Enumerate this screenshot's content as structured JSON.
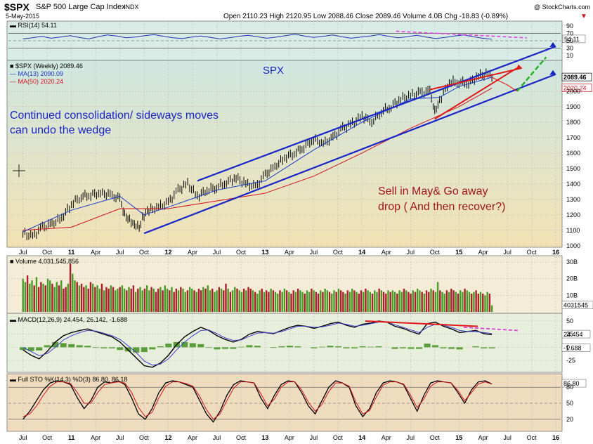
{
  "header": {
    "symbol": "$SPX",
    "name": "S&P 500 Large Cap Index",
    "exchange": "INDX",
    "date": "5-May-2015",
    "copyright": "@ StockCharts.com",
    "quote": "Open 2110.23  High 2120.95  Low 2088.46  Close 2089.46  Volume 4.0B  Chg -18.83 (-0.89%)",
    "quote_arrow": "▼"
  },
  "annotations": {
    "spx": "SPX",
    "consolidation": "Continued consolidation/ sideways moves\ncan undo the wedge",
    "sell_in_may": "Sell in May& Go away\ndrop ( And then recover?)"
  },
  "colors": {
    "price": "#000000",
    "ma13": "#1a3cc8",
    "ma50": "#d4141c",
    "trendline": "#1a25c8",
    "wedge": "#e01818",
    "projection_up": "#22b022",
    "projection_down": "#e02020",
    "macd_signal_down": "#e040e0",
    "volume_up": "#4a9a2a",
    "volume_down": "#a8202a",
    "panel_bg_gradient_top": "#cfe6e0",
    "panel_bg_gradient_bottom": "#f0e0b0"
  },
  "chart_data": [
    {
      "panel": "rsi",
      "type": "line",
      "label": "RSI(14) 54.11",
      "current_value": "54.11",
      "y_ticks": [
        "90",
        "70",
        "50",
        "30",
        "10"
      ],
      "ylim": [
        0,
        100
      ],
      "levels": [
        70,
        30
      ],
      "series": [
        {
          "name": "RSI(14)",
          "values": [
            55,
            58,
            62,
            57,
            60,
            64,
            59,
            55,
            61,
            66,
            63,
            58,
            60,
            64,
            67,
            62,
            58,
            56,
            60,
            63,
            59,
            55,
            58,
            62,
            65,
            61,
            57,
            60,
            64,
            68,
            63,
            59,
            62,
            66,
            61,
            57,
            60,
            63,
            67,
            62,
            58,
            61,
            65,
            60,
            56,
            59,
            63,
            66,
            61,
            57,
            54
          ]
        }
      ]
    },
    {
      "panel": "price",
      "type": "line",
      "title": "$SPX (Weekly) 2089.46",
      "legend": [
        "MA(13) 2090.09",
        "MA(50) 2020.24"
      ],
      "y_ticks": [
        "2000",
        "1900",
        "1800",
        "1700",
        "1600",
        "1500",
        "1400",
        "1300",
        "1200",
        "1100",
        "1000"
      ],
      "ylim": [
        990,
        2190
      ],
      "price_labels": [
        "2089.46",
        "2020.24"
      ],
      "x_ticks": [
        "Jul",
        "Oct",
        "11",
        "Apr",
        "Jul",
        "Oct",
        "12",
        "Apr",
        "Jul",
        "Oct",
        "13",
        "Apr",
        "Jul",
        "Oct",
        "14",
        "Apr",
        "Jul",
        "Oct",
        "15",
        "Apr",
        "Jul",
        "Oct",
        "16"
      ],
      "series": [
        {
          "name": "$SPX (Weekly)",
          "x": [
            2010.5,
            2010.6,
            2010.7,
            2010.8,
            2010.9,
            2011.0,
            2011.1,
            2011.2,
            2011.3,
            2011.4,
            2011.5,
            2011.55,
            2011.6,
            2011.65,
            2011.7,
            2011.75,
            2011.8,
            2011.9,
            2012.0,
            2012.1,
            2012.2,
            2012.3,
            2012.4,
            2012.5,
            2012.6,
            2012.7,
            2012.8,
            2012.9,
            2013.0,
            2013.1,
            2013.2,
            2013.3,
            2013.4,
            2013.5,
            2013.6,
            2013.7,
            2013.8,
            2013.9,
            2014.0,
            2014.1,
            2014.2,
            2014.3,
            2014.4,
            2014.5,
            2014.6,
            2014.7,
            2014.75,
            2014.8,
            2014.9,
            2015.0,
            2015.1,
            2015.2,
            2015.3,
            2015.34
          ],
          "values": [
            1080,
            1060,
            1120,
            1140,
            1180,
            1270,
            1320,
            1330,
            1340,
            1330,
            1300,
            1200,
            1170,
            1140,
            1120,
            1200,
            1230,
            1250,
            1280,
            1360,
            1400,
            1320,
            1360,
            1380,
            1410,
            1440,
            1400,
            1380,
            1460,
            1510,
            1570,
            1600,
            1640,
            1690,
            1660,
            1700,
            1760,
            1790,
            1840,
            1800,
            1870,
            1900,
            1950,
            1970,
            1990,
            2000,
            1870,
            1940,
            2060,
            2060,
            2050,
            2100,
            2110,
            2089
          ]
        },
        {
          "name": "MA(13)",
          "x": [
            2010.5,
            2011.0,
            2011.5,
            2011.75,
            2012.0,
            2012.5,
            2013.0,
            2013.5,
            2014.0,
            2014.5,
            2014.8,
            2015.0,
            2015.34
          ],
          "values": [
            1090,
            1230,
            1320,
            1200,
            1250,
            1360,
            1420,
            1620,
            1800,
            1950,
            1960,
            2030,
            2090
          ]
        },
        {
          "name": "MA(50)",
          "x": [
            2010.5,
            2011.0,
            2011.5,
            2012.0,
            2012.5,
            2013.0,
            2013.5,
            2014.0,
            2014.5,
            2015.0,
            2015.34
          ],
          "values": [
            1100,
            1120,
            1240,
            1240,
            1290,
            1340,
            1450,
            1600,
            1760,
            1900,
            2020
          ]
        }
      ],
      "trendlines": {
        "upper_channel": {
          "x": [
            2012.3,
            2016.0
          ],
          "values": [
            1420,
            2290
          ]
        },
        "lower_channel": {
          "x": [
            2011.75,
            2016.0
          ],
          "values": [
            1080,
            2110
          ]
        },
        "wedge_upper": {
          "x": [
            2014.7,
            2015.65
          ],
          "values": [
            2010,
            2150
          ]
        },
        "wedge_lower": {
          "x": [
            2014.75,
            2015.6
          ],
          "values": [
            1820,
            2150
          ]
        },
        "projection_down": {
          "x": [
            2015.34,
            2015.5,
            2015.6
          ],
          "values": [
            2090,
            2040,
            2000
          ]
        },
        "projection_up": {
          "x": [
            2015.6,
            2015.9
          ],
          "values": [
            2000,
            2220
          ]
        }
      }
    },
    {
      "panel": "volume",
      "type": "bar",
      "label": "Volume 4,031,545,856",
      "current_value": "4031545",
      "y_ticks": [
        "30B",
        "20B",
        "10B"
      ],
      "ylim": [
        0,
        33
      ],
      "series": [
        {
          "name": "Volume",
          "values": [
            20,
            18,
            22,
            17,
            19,
            16,
            21,
            15,
            18,
            17,
            16,
            20,
            19,
            17,
            15,
            18,
            16,
            19,
            14,
            15,
            17,
            29,
            23,
            19,
            18,
            16,
            17,
            15,
            16,
            14,
            18,
            17,
            15,
            16,
            14,
            17,
            13,
            15,
            14,
            16,
            15,
            13,
            14,
            15,
            16,
            14,
            13,
            15,
            14,
            16,
            12,
            14,
            15,
            13,
            14,
            16,
            13,
            15,
            14,
            12,
            14,
            15,
            13,
            16,
            14,
            13,
            15,
            12,
            14,
            13,
            15,
            14,
            12,
            13,
            15,
            14,
            13,
            12,
            14,
            13,
            15,
            14,
            16,
            13,
            14,
            12,
            13,
            15,
            14,
            13,
            17,
            14,
            12,
            13,
            15,
            14,
            13,
            12,
            14,
            13,
            15,
            14,
            13,
            12,
            11,
            13,
            14,
            12,
            13,
            12,
            14,
            13,
            12,
            11,
            13,
            12,
            14,
            13,
            12,
            11,
            13,
            12,
            14,
            13,
            12,
            11,
            13,
            12,
            14,
            13,
            12,
            11,
            13,
            12,
            14,
            13,
            12,
            11,
            13,
            12,
            14,
            13,
            12,
            11,
            13,
            12,
            14,
            13,
            12,
            11,
            13,
            12,
            14,
            13,
            12,
            11,
            13,
            12,
            14,
            13,
            12,
            11,
            13,
            12,
            13,
            12,
            11,
            13,
            12,
            14,
            13,
            12,
            11,
            13,
            12,
            14,
            13,
            12,
            11,
            13,
            12,
            14,
            13,
            12,
            18,
            13,
            12,
            11,
            13,
            12,
            14,
            13,
            12,
            11,
            13,
            12,
            14,
            13,
            12,
            11,
            12,
            13,
            11,
            12,
            11,
            10,
            12,
            11,
            4
          ]
        }
      ]
    },
    {
      "panel": "macd",
      "type": "line",
      "label": "MACD(12,26,9) 24.454, 26.142, -1.688",
      "current_values": [
        "24.454",
        "-1.688"
      ],
      "y_ticks": [
        "50",
        "25",
        "0",
        "-25"
      ],
      "ylim": [
        -45,
        62
      ],
      "series": [
        {
          "name": "MACD",
          "values": [
            -5,
            -15,
            -22,
            -8,
            10,
            22,
            28,
            32,
            35,
            30,
            25,
            20,
            10,
            -5,
            -20,
            -35,
            -38,
            -30,
            -15,
            5,
            20,
            30,
            38,
            32,
            22,
            15,
            10,
            15,
            25,
            30,
            28,
            26,
            32,
            38,
            42,
            40,
            36,
            40,
            45,
            48,
            42,
            38,
            44,
            46,
            50,
            48,
            40,
            36,
            30,
            25,
            45,
            48,
            40,
            35,
            28,
            30,
            32,
            26,
            24
          ]
        },
        {
          "name": "Signal",
          "values": [
            0,
            -8,
            -16,
            -12,
            0,
            14,
            22,
            28,
            32,
            31,
            27,
            22,
            15,
            3,
            -10,
            -26,
            -34,
            -32,
            -22,
            -5,
            10,
            22,
            32,
            33,
            26,
            18,
            13,
            14,
            21,
            27,
            28,
            27,
            30,
            35,
            40,
            40,
            38,
            39,
            42,
            46,
            44,
            40,
            42,
            45,
            48,
            48,
            43,
            38,
            33,
            28,
            38,
            44,
            42,
            38,
            32,
            30,
            30,
            28,
            26
          ]
        }
      ],
      "histogram": [
        -5,
        -7,
        -6,
        4,
        10,
        8,
        6,
        4,
        3,
        -1,
        -2,
        -2,
        -5,
        -8,
        -10,
        -9,
        -4,
        2,
        7,
        10,
        10,
        8,
        6,
        -1,
        -4,
        -3,
        -3,
        1,
        4,
        3,
        0,
        -1,
        2,
        3,
        2,
        0,
        -2,
        1,
        3,
        2,
        -2,
        -2,
        2,
        1,
        2,
        0,
        -3,
        -2,
        -3,
        -3,
        7,
        4,
        -2,
        -3,
        -4,
        0,
        2,
        -2,
        -2
      ],
      "trendlines": {
        "macd_peaks": {
          "x": [
            0.73,
            0.97
          ],
          "values": [
            50,
            40
          ]
        },
        "projection": {
          "x": [
            0.94,
            1.0
          ],
          "values": [
            38,
            32
          ]
        }
      }
    },
    {
      "panel": "sto",
      "type": "line",
      "label": "Full STO %K(14,3) %D(3) 86.80, 86.18",
      "current_value": "86.80",
      "y_ticks": [
        "80",
        "50",
        "20"
      ],
      "ylim": [
        0,
        100
      ],
      "levels": [
        80,
        20
      ],
      "series": [
        {
          "name": "%K",
          "values": [
            20,
            35,
            55,
            75,
            88,
            92,
            90,
            85,
            60,
            40,
            55,
            80,
            90,
            88,
            92,
            85,
            60,
            30,
            20,
            40,
            70,
            88,
            92,
            90,
            85,
            80,
            55,
            30,
            15,
            35,
            65,
            85,
            92,
            90,
            88,
            60,
            40,
            65,
            85,
            92,
            90,
            70,
            45,
            30,
            55,
            80,
            92,
            88,
            80,
            45,
            25,
            40,
            70,
            88,
            92,
            90,
            85,
            60,
            35,
            65,
            88,
            92,
            90,
            88,
            70,
            50,
            75,
            90,
            92,
            86
          ]
        },
        {
          "name": "%D",
          "values": [
            25,
            30,
            45,
            65,
            82,
            90,
            90,
            87,
            70,
            50,
            50,
            70,
            85,
            88,
            90,
            88,
            70,
            42,
            25,
            33,
            60,
            82,
            90,
            90,
            87,
            82,
            63,
            38,
            20,
            30,
            55,
            78,
            90,
            90,
            88,
            68,
            45,
            58,
            80,
            90,
            90,
            75,
            52,
            35,
            48,
            72,
            88,
            88,
            82,
            52,
            30,
            36,
            62,
            84,
            90,
            90,
            86,
            66,
            42,
            58,
            82,
            90,
            90,
            88,
            74,
            55,
            70,
            86,
            90,
            86
          ]
        }
      ]
    }
  ]
}
